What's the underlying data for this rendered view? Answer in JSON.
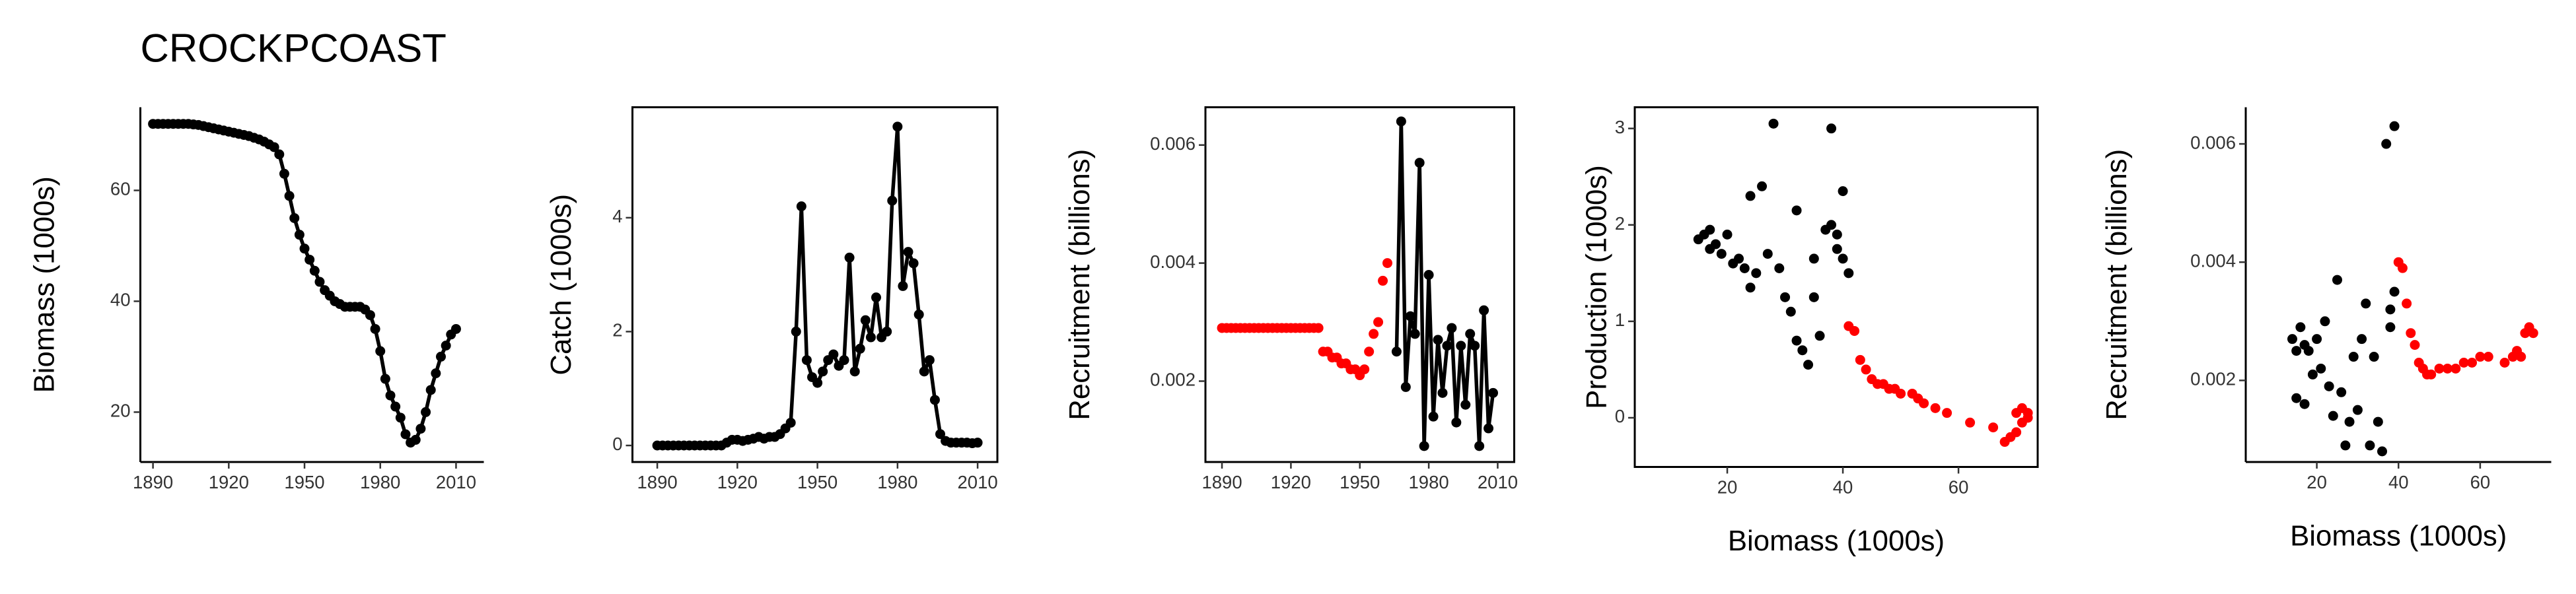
{
  "chart_data": [
    {
      "type": "line",
      "title": "CROCKPCOAST",
      "y_label": "Biomass (1000s)",
      "xlim": [
        1885,
        2021
      ],
      "xticks": [
        1890,
        1920,
        1950,
        1980,
        2010
      ],
      "ylim": [
        11,
        75
      ],
      "yticks": [
        20,
        40,
        60
      ],
      "series": [
        {
          "color": "#000000",
          "x": [
            1890,
            1892,
            1894,
            1896,
            1898,
            1900,
            1902,
            1904,
            1906,
            1908,
            1910,
            1912,
            1914,
            1916,
            1918,
            1920,
            1922,
            1924,
            1926,
            1928,
            1930,
            1932,
            1934,
            1936,
            1938,
            1940,
            1942,
            1944,
            1946,
            1948,
            1950,
            1952,
            1954,
            1956,
            1958,
            1960,
            1962,
            1964,
            1966,
            1968,
            1970,
            1972,
            1974,
            1976,
            1978,
            1980,
            1982,
            1984,
            1986,
            1988,
            1990,
            1992,
            1994,
            1996,
            1998,
            2000,
            2002,
            2004,
            2006,
            2008,
            2010
          ],
          "values": [
            72,
            72,
            72,
            72,
            72,
            72,
            72,
            72,
            71.9,
            71.8,
            71.6,
            71.4,
            71.2,
            71,
            70.8,
            70.6,
            70.4,
            70.2,
            70,
            69.8,
            69.5,
            69.2,
            68.8,
            68.3,
            67.8,
            66.5,
            63,
            59,
            55,
            52,
            49.5,
            47.5,
            45.5,
            43.5,
            42,
            41,
            40,
            39.5,
            39,
            39,
            39,
            39,
            38.5,
            37.5,
            35,
            31,
            26,
            23,
            21,
            19,
            16,
            14.5,
            15,
            17,
            20,
            24,
            27,
            30,
            32,
            34,
            35
          ]
        }
      ]
    },
    {
      "type": "line",
      "y_label": "Catch (1000s)",
      "xlim": [
        1880.7,
        2017.4
      ],
      "xticks": [
        1890,
        1920,
        1950,
        1980,
        2010
      ],
      "ylim": [
        -0.29,
        5.94
      ],
      "yticks": [
        0,
        2,
        4
      ],
      "series": [
        {
          "color": "#000000",
          "x": [
            1890,
            1892,
            1894,
            1896,
            1898,
            1900,
            1902,
            1904,
            1906,
            1908,
            1910,
            1912,
            1914,
            1916,
            1918,
            1920,
            1922,
            1924,
            1926,
            1928,
            1930,
            1932,
            1934,
            1936,
            1938,
            1940,
            1942,
            1944,
            1946,
            1948,
            1950,
            1952,
            1954,
            1956,
            1958,
            1960,
            1962,
            1964,
            1966,
            1968,
            1970,
            1972,
            1974,
            1976,
            1978,
            1980,
            1982,
            1984,
            1986,
            1988,
            1990,
            1992,
            1994,
            1996,
            1998,
            2000,
            2002,
            2004,
            2006,
            2008,
            2010
          ],
          "values": [
            0,
            0,
            0,
            0,
            0,
            0,
            0,
            0,
            0,
            0,
            0,
            0,
            0,
            0.05,
            0.1,
            0.1,
            0.08,
            0.1,
            0.12,
            0.15,
            0.12,
            0.15,
            0.15,
            0.2,
            0.3,
            0.4,
            2.0,
            4.2,
            1.5,
            1.2,
            1.1,
            1.3,
            1.5,
            1.6,
            1.4,
            1.5,
            3.3,
            1.3,
            1.7,
            2.2,
            1.9,
            2.6,
            1.9,
            2.0,
            4.3,
            5.6,
            2.8,
            3.4,
            3.2,
            2.3,
            1.3,
            1.5,
            0.8,
            0.2,
            0.08,
            0.05,
            0.05,
            0.05,
            0.05,
            0.04,
            0.05
          ]
        }
      ]
    },
    {
      "type": "line",
      "y_label": "Recruitment (billions)",
      "xlim": [
        1882.8,
        2017.2
      ],
      "xticks": [
        1890,
        1920,
        1950,
        1980,
        2010
      ],
      "ylim": [
        0.00063,
        0.00664
      ],
      "yticks": [
        0.002,
        0.004,
        0.006
      ],
      "series": [
        {
          "color": "#ff0000",
          "line": false,
          "x": [
            1890,
            1892,
            1894,
            1896,
            1898,
            1900,
            1902,
            1904,
            1906,
            1908,
            1910,
            1912,
            1914,
            1916,
            1918,
            1920,
            1922,
            1924,
            1926,
            1928,
            1930,
            1932,
            1934,
            1936,
            1938,
            1940,
            1942,
            1944,
            1946,
            1948,
            1950,
            1952,
            1954,
            1956,
            1958,
            1960,
            1962
          ],
          "values": [
            0.0029,
            0.0029,
            0.0029,
            0.0029,
            0.0029,
            0.0029,
            0.0029,
            0.0029,
            0.0029,
            0.0029,
            0.0029,
            0.0029,
            0.0029,
            0.0029,
            0.0029,
            0.0029,
            0.0029,
            0.0029,
            0.0029,
            0.0029,
            0.0029,
            0.0029,
            0.0025,
            0.0025,
            0.0024,
            0.0024,
            0.0023,
            0.0023,
            0.0022,
            0.0022,
            0.0021,
            0.0022,
            0.0025,
            0.0028,
            0.003,
            0.0037,
            0.004
          ]
        },
        {
          "color": "#000000",
          "line": true,
          "x": [
            1966,
            1968,
            1970,
            1972,
            1974,
            1976,
            1978,
            1980,
            1982,
            1984,
            1986,
            1988,
            1990,
            1992,
            1994,
            1996,
            1998,
            2000,
            2002,
            2004,
            2006,
            2008
          ],
          "values": [
            0.0025,
            0.0064,
            0.0019,
            0.0031,
            0.0028,
            0.0057,
            0.0009,
            0.0038,
            0.0014,
            0.0027,
            0.0018,
            0.0026,
            0.0029,
            0.0013,
            0.0026,
            0.0016,
            0.0028,
            0.0026,
            0.0009,
            0.0032,
            0.0012,
            0.0018
          ]
        }
      ]
    },
    {
      "type": "scatter",
      "y_label": "Production (1000s)",
      "x_label": "Biomass (1000s)",
      "xlim": [
        4,
        73.7
      ],
      "xticks": [
        20,
        40,
        60
      ],
      "ylim": [
        -0.51,
        3.22
      ],
      "yticks": [
        0,
        1,
        2,
        3
      ],
      "series": [
        {
          "color": "#000000",
          "x": [
            15,
            16,
            17,
            17,
            18,
            19,
            20,
            21,
            22,
            23,
            24,
            24,
            25,
            26,
            27,
            28,
            29,
            30,
            31,
            32,
            32,
            33,
            34,
            35,
            35,
            36,
            37,
            38,
            38,
            39,
            39,
            40,
            40,
            41
          ],
          "values": [
            1.85,
            1.9,
            1.75,
            1.95,
            1.8,
            1.7,
            1.9,
            1.6,
            1.65,
            1.55,
            1.35,
            2.3,
            1.5,
            2.4,
            1.7,
            3.05,
            1.55,
            1.25,
            1.1,
            2.15,
            0.8,
            0.7,
            0.55,
            1.65,
            1.25,
            0.85,
            1.95,
            2.0,
            3.0,
            1.9,
            1.75,
            2.35,
            1.65,
            1.5
          ]
        },
        {
          "color": "#ff0000",
          "x": [
            41,
            42,
            43,
            44,
            45,
            46,
            47,
            48,
            49,
            50,
            52,
            53,
            54,
            56,
            58,
            62,
            66,
            68,
            69,
            70,
            70,
            71,
            71,
            72,
            72
          ],
          "values": [
            0.95,
            0.9,
            0.6,
            0.5,
            0.4,
            0.35,
            0.35,
            0.3,
            0.3,
            0.25,
            0.25,
            0.2,
            0.15,
            0.1,
            0.05,
            -0.05,
            -0.1,
            -0.25,
            -0.2,
            0.05,
            -0.15,
            0.1,
            -0.05,
            0.0,
            0.05
          ]
        }
      ]
    },
    {
      "type": "scatter",
      "y_label": "Recruitment (billions)",
      "x_label": "Biomass (1000s)",
      "xlim": [
        2.6,
        77.4
      ],
      "xticks": [
        20,
        40,
        60
      ],
      "ylim": [
        0.00062,
        0.00662
      ],
      "yticks": [
        0.002,
        0.004,
        0.006
      ],
      "series": [
        {
          "color": "#000000",
          "x": [
            14,
            15,
            15,
            16,
            17,
            17,
            18,
            19,
            20,
            21,
            22,
            23,
            24,
            25,
            26,
            27,
            28,
            29,
            30,
            31,
            32,
            33,
            34,
            35,
            36,
            37,
            38,
            38,
            39,
            39
          ],
          "values": [
            0.0027,
            0.0025,
            0.0017,
            0.0029,
            0.0026,
            0.0016,
            0.0025,
            0.0021,
            0.0027,
            0.0022,
            0.003,
            0.0019,
            0.0014,
            0.0037,
            0.0018,
            0.0009,
            0.0013,
            0.0024,
            0.0015,
            0.0027,
            0.0033,
            0.0009,
            0.0024,
            0.0013,
            0.0008,
            0.006,
            0.0032,
            0.0029,
            0.0063,
            0.0035
          ]
        },
        {
          "color": "#ff0000",
          "x": [
            40,
            41,
            42,
            43,
            44,
            45,
            46,
            47,
            48,
            50,
            52,
            54,
            56,
            58,
            60,
            62,
            66,
            68,
            69,
            70,
            71,
            72,
            73
          ],
          "values": [
            0.004,
            0.0039,
            0.0033,
            0.0028,
            0.0026,
            0.0023,
            0.0022,
            0.0021,
            0.0021,
            0.0022,
            0.0022,
            0.0022,
            0.0023,
            0.0023,
            0.0024,
            0.0024,
            0.0023,
            0.0024,
            0.0025,
            0.0024,
            0.0028,
            0.0029,
            0.0028
          ]
        }
      ]
    }
  ]
}
